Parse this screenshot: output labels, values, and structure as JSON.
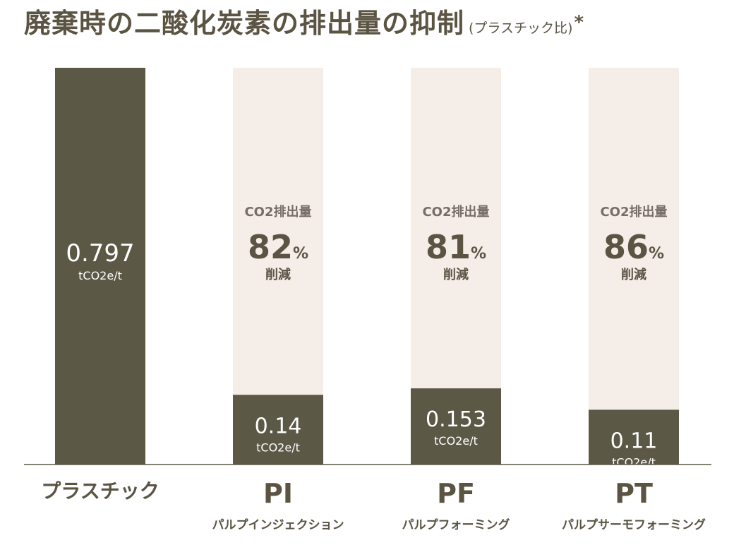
{
  "title": "廃棄時の二酸化炭素の排出量の抑制",
  "subtitle": "(プラスチック比)",
  "title_mark": "*",
  "colors": {
    "bar": "#5c5846",
    "reduction_bg": "#f4ede8",
    "text": "#5b5443",
    "reduction_text": "#766d66",
    "baseline": "#5c5846"
  },
  "chart_data": {
    "type": "bar",
    "unit": "tCO2e/t",
    "ylim": [
      0,
      0.797
    ],
    "categories": [
      "プラスチック",
      "PI",
      "PF",
      "PT"
    ],
    "category_sublabels": [
      "",
      "パルプインジェクション",
      "パルプフォーミング",
      "パルプサーモフォーミング"
    ],
    "values": [
      0.797,
      0.14,
      0.153,
      0.11
    ],
    "value_labels": [
      "0.797",
      "0.14",
      "0.153",
      "0.11"
    ],
    "reductions": [
      null,
      82,
      81,
      86
    ],
    "reduction_header": "CO2排出量",
    "reduction_unit": "%",
    "reduction_footer": "削減"
  }
}
